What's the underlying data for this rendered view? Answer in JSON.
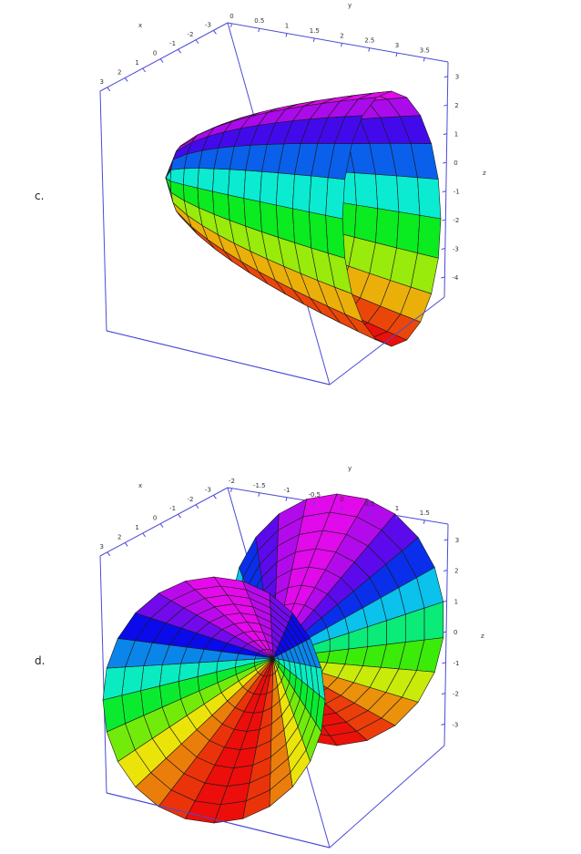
{
  "panels": [
    {
      "label": "c.",
      "axes": {
        "x_name": "x",
        "y_name": "y",
        "z_name": "z",
        "x_ticks": [
          "3",
          "2",
          "1",
          "0",
          "-1",
          "-2",
          "-3"
        ],
        "y_ticks": [
          "0",
          "0.5",
          "1",
          "1.5",
          "2",
          "2.5",
          "3",
          "3.5"
        ],
        "z_ticks": [
          "3",
          "2",
          "1",
          "0",
          "-1",
          "-2",
          "-3",
          "-4"
        ]
      }
    },
    {
      "label": "d.",
      "axes": {
        "x_name": "x",
        "y_name": "y",
        "z_name": "z",
        "x_ticks": [
          "3",
          "2",
          "1",
          "0",
          "-1",
          "-2",
          "-3"
        ],
        "y_ticks": [
          "-2",
          "-1.5",
          "-1",
          "-0.5",
          "0",
          "0.5",
          "1",
          "1.5"
        ],
        "z_ticks": [
          "3",
          "2",
          "1",
          "0",
          "-1",
          "-2",
          "-3"
        ]
      }
    }
  ],
  "colors": {
    "box": "#4b4bd6",
    "mesh": "#1a1a1a"
  }
}
